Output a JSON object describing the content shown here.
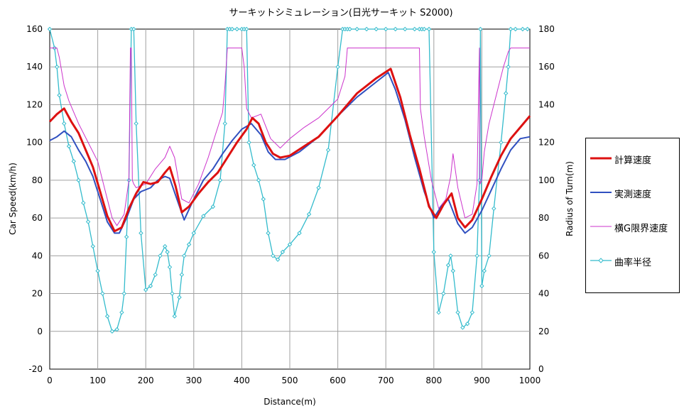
{
  "chart_data": {
    "type": "line",
    "title": "サーキットシミュレーション(日光サーキット S2000)",
    "xlabel": "Distance(m)",
    "ylabel": "Car Speed(km/h)",
    "y2label": "Radius of Turn(m)",
    "xlim": [
      0,
      1000
    ],
    "ylim": [
      -20,
      160
    ],
    "y2lim": [
      0,
      180
    ],
    "xticks": [
      0,
      100,
      200,
      300,
      400,
      500,
      600,
      700,
      800,
      900,
      1000
    ],
    "yticks": [
      -20,
      0,
      20,
      40,
      60,
      80,
      100,
      120,
      140,
      160
    ],
    "y2ticks": [
      0,
      20,
      40,
      60,
      80,
      100,
      120,
      140,
      160,
      180
    ],
    "grid": true,
    "legend_position": "right",
    "series": [
      {
        "name": "計算速度",
        "color": "#dd1111",
        "axis": "left",
        "x": [
          0,
          15,
          30,
          45,
          60,
          75,
          90,
          105,
          120,
          135,
          150,
          165,
          180,
          195,
          210,
          225,
          240,
          250,
          262,
          275,
          290,
          310,
          330,
          350,
          370,
          390,
          410,
          422,
          435,
          450,
          465,
          480,
          500,
          530,
          560,
          600,
          640,
          680,
          710,
          730,
          750,
          770,
          790,
          805,
          820,
          837,
          850,
          865,
          880,
          900,
          920,
          940,
          960,
          980,
          1000
        ],
        "y": [
          111,
          115,
          118,
          111,
          105,
          96,
          87,
          74,
          61,
          53,
          55,
          65,
          73,
          79,
          78,
          79,
          84,
          87,
          77,
          63,
          66,
          73,
          79,
          84,
          92,
          100,
          107,
          113,
          110,
          100,
          94,
          92,
          93,
          98,
          103,
          114,
          126,
          134,
          139,
          124,
          104,
          86,
          66,
          60,
          67,
          73,
          60,
          55,
          59,
          70,
          82,
          93,
          102,
          108,
          114
        ]
      },
      {
        "name": "実測速度",
        "color": "#3050c0",
        "axis": "left",
        "x": [
          0,
          15,
          30,
          45,
          60,
          75,
          90,
          105,
          120,
          135,
          145,
          160,
          175,
          190,
          210,
          225,
          240,
          250,
          265,
          280,
          300,
          320,
          340,
          360,
          380,
          400,
          420,
          440,
          455,
          470,
          490,
          520,
          560,
          600,
          640,
          680,
          705,
          720,
          740,
          760,
          780,
          800,
          815,
          830,
          850,
          865,
          880,
          900,
          920,
          940,
          960,
          980,
          1000
        ],
        "y": [
          101,
          103,
          106,
          103,
          96,
          90,
          82,
          70,
          58,
          52,
          52,
          60,
          70,
          74,
          76,
          80,
          82,
          81,
          70,
          59,
          70,
          80,
          86,
          94,
          101,
          107,
          110,
          104,
          95,
          91,
          91,
          95,
          103,
          114,
          124,
          132,
          137,
          128,
          112,
          92,
          74,
          60,
          66,
          70,
          57,
          52,
          55,
          64,
          75,
          86,
          96,
          102,
          103
        ]
      },
      {
        "name": "横G限界速度",
        "color": "#cc33cc",
        "axis": "left",
        "x": [
          0,
          15,
          20,
          30,
          40,
          60,
          80,
          100,
          115,
          130,
          140,
          155,
          165,
          168,
          170,
          172,
          175,
          180,
          200,
          220,
          240,
          250,
          260,
          275,
          290,
          310,
          330,
          345,
          360,
          365,
          370,
          400,
          405,
          410,
          420,
          440,
          460,
          480,
          500,
          530,
          560,
          600,
          615,
          620,
          700,
          770,
          772,
          780,
          795,
          810,
          825,
          835,
          840,
          850,
          865,
          880,
          890,
          895,
          896,
          900,
          905,
          915,
          930,
          945,
          955,
          960,
          980,
          1000
        ],
        "y": [
          150,
          150,
          145,
          130,
          122,
          110,
          100,
          90,
          75,
          60,
          56,
          62,
          80,
          150,
          150,
          80,
          78,
          76,
          78,
          86,
          92,
          98,
          92,
          70,
          68,
          78,
          92,
          104,
          116,
          130,
          150,
          150,
          140,
          118,
          113,
          115,
          102,
          97,
          102,
          108,
          113,
          123,
          135,
          150,
          150,
          150,
          118,
          103,
          80,
          65,
          70,
          82,
          94,
          76,
          60,
          62,
          78,
          150,
          78,
          80,
          95,
          110,
          125,
          140,
          148,
          150,
          150,
          150
        ]
      },
      {
        "name": "曲率半径",
        "color": "#33bbcc",
        "axis": "right",
        "markers": true,
        "x": [
          0,
          10,
          15,
          20,
          30,
          40,
          50,
          60,
          70,
          80,
          90,
          100,
          110,
          120,
          130,
          140,
          150,
          155,
          160,
          165,
          170,
          175,
          180,
          190,
          200,
          210,
          220,
          230,
          240,
          245,
          250,
          255,
          260,
          270,
          275,
          280,
          290,
          300,
          320,
          340,
          355,
          365,
          370,
          375,
          380,
          390,
          400,
          405,
          410,
          415,
          425,
          435,
          445,
          455,
          465,
          475,
          485,
          500,
          520,
          540,
          560,
          580,
          600,
          610,
          615,
          620,
          625,
          640,
          660,
          680,
          700,
          720,
          740,
          760,
          770,
          775,
          780,
          790,
          800,
          810,
          820,
          830,
          835,
          840,
          850,
          860,
          870,
          880,
          890,
          895,
          897,
          900,
          905,
          915,
          925,
          940,
          950,
          955,
          960,
          970,
          985,
          995
        ],
        "y": [
          180,
          170,
          160,
          145,
          130,
          118,
          110,
          100,
          88,
          78,
          65,
          52,
          40,
          28,
          20,
          21,
          30,
          40,
          70,
          100,
          180,
          180,
          130,
          72,
          42,
          44,
          50,
          60,
          65,
          62,
          54,
          40,
          28,
          38,
          50,
          60,
          66,
          72,
          81,
          86,
          100,
          130,
          180,
          180,
          180,
          180,
          180,
          180,
          180,
          120,
          108,
          100,
          90,
          72,
          60,
          58,
          62,
          66,
          72,
          82,
          96,
          116,
          160,
          180,
          180,
          180,
          180,
          180,
          180,
          180,
          180,
          180,
          180,
          180,
          180,
          180,
          180,
          180,
          62,
          30,
          40,
          55,
          60,
          52,
          30,
          22,
          24,
          30,
          60,
          100,
          180,
          44,
          52,
          60,
          85,
          120,
          146,
          160,
          180,
          180,
          180,
          180
        ]
      }
    ]
  }
}
